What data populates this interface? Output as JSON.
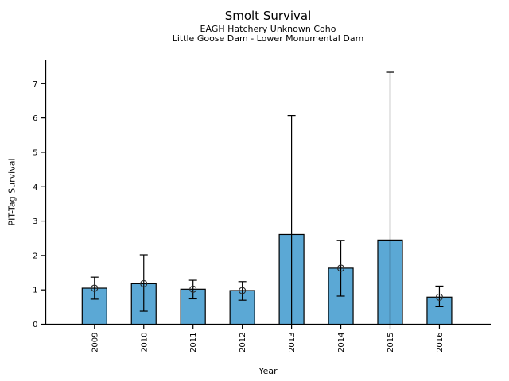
{
  "chart_data": {
    "type": "bar",
    "title": "Smolt Survival",
    "subtitle": [
      "EAGH Hatchery Unknown Coho",
      "Little Goose Dam - Lower Monumental Dam"
    ],
    "xlabel": "Year",
    "ylabel": "PIT-Tag Survival",
    "categories": [
      "2009",
      "2010",
      "2011",
      "2012",
      "2013",
      "2014",
      "2015",
      "2016"
    ],
    "values": [
      1.05,
      1.18,
      1.02,
      0.98,
      2.61,
      1.63,
      2.45,
      0.79
    ],
    "error_low": [
      0.73,
      0.38,
      0.74,
      0.7,
      0.0,
      0.82,
      0.0,
      0.51
    ],
    "error_high": [
      1.37,
      2.02,
      1.28,
      1.24,
      6.07,
      2.44,
      7.33,
      1.11
    ],
    "marker_shown": [
      true,
      true,
      true,
      true,
      false,
      true,
      false,
      true
    ],
    "marker": "open-circle",
    "yticks": [
      0,
      1,
      2,
      3,
      4,
      5,
      6,
      7
    ],
    "ylim": [
      0,
      7.7
    ],
    "grid": false,
    "legend": null,
    "bar_color": "#5BA8D5",
    "bar_edge_color": "#000000",
    "errorbar_color": "#000000",
    "background_color": "#FFFFFF"
  }
}
